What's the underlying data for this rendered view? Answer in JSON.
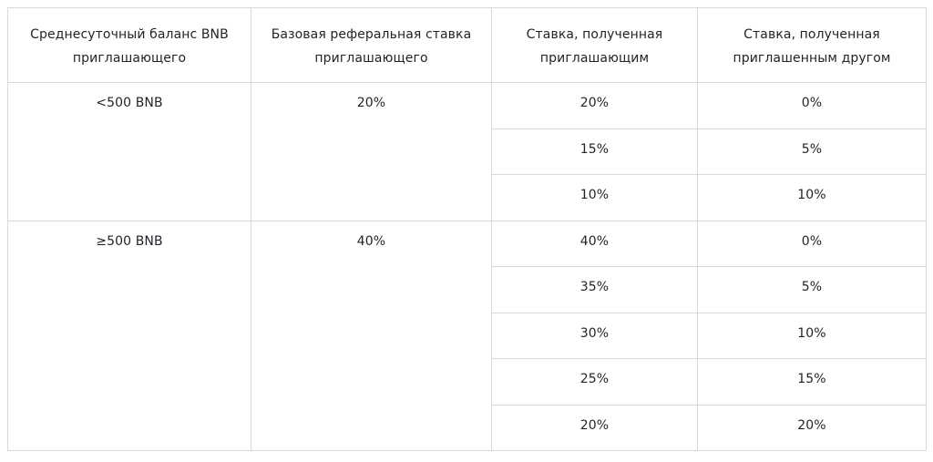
{
  "table": {
    "headers": [
      "Среднесуточный баланс BNB приглашающего",
      "Базовая реферальная ставка приглашающего",
      "Ставка, полученная приглашающим",
      "Ставка, полученная приглашенным другом"
    ],
    "groups": [
      {
        "balance": "<500 BNB",
        "base_rate": "20%",
        "rows": [
          {
            "inviter": "20%",
            "friend": "0%"
          },
          {
            "inviter": "15%",
            "friend": "5%"
          },
          {
            "inviter": "10%",
            "friend": "10%"
          }
        ]
      },
      {
        "balance": "≥500 BNB",
        "base_rate": "40%",
        "rows": [
          {
            "inviter": "40%",
            "friend": "0%"
          },
          {
            "inviter": "35%",
            "friend": "5%"
          },
          {
            "inviter": "30%",
            "friend": "10%"
          },
          {
            "inviter": "25%",
            "friend": "15%"
          },
          {
            "inviter": "20%",
            "friend": "20%"
          }
        ]
      }
    ]
  }
}
